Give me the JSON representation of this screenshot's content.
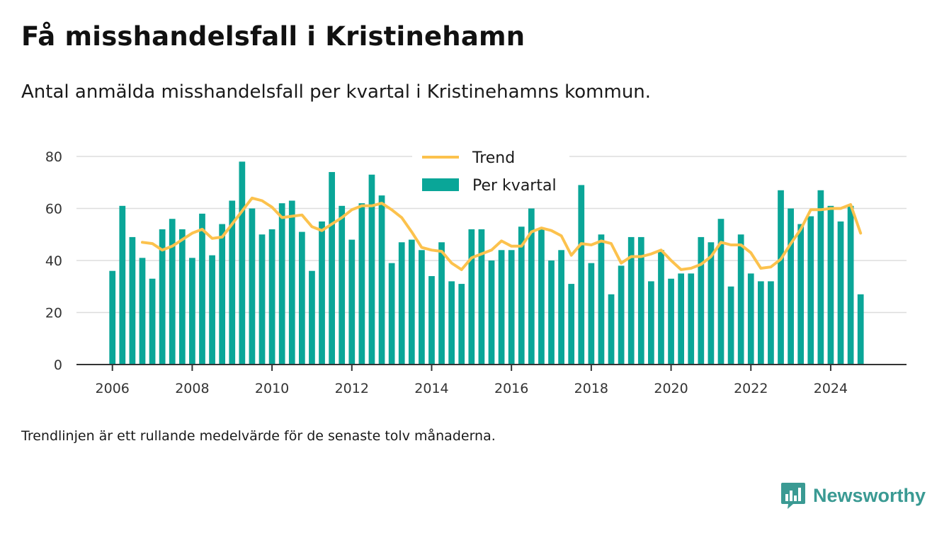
{
  "header": {
    "title": "Få misshandelsfall i Kristinehamn",
    "subtitle": "Antal anmälda misshandelsfall per kvartal i Kristinehamns kommun."
  },
  "footer": {
    "note": "Trendlinjen är ett rullande medelvärde för de senaste tolv månaderna.",
    "brand": "Newsworthy"
  },
  "colors": {
    "bar": "#0aa698",
    "trend": "#fcc24d",
    "grid": "#dddddd",
    "axis": "#333333",
    "brand": "#3a9a93"
  },
  "chart_data": {
    "type": "bar",
    "title": "Få misshandelsfall i Kristinehamn",
    "subtitle": "Antal anmälda misshandelsfall per kvartal i Kristinehamns kommun.",
    "xlabel": "",
    "ylabel": "",
    "ylim": [
      0,
      80
    ],
    "xlim": [
      2005.1,
      2025.9
    ],
    "yticks": [
      0,
      20,
      40,
      60,
      80
    ],
    "xticks": [
      "2006",
      "2008",
      "2010",
      "2012",
      "2014",
      "2016",
      "2018",
      "2020",
      "2022",
      "2024"
    ],
    "grid": true,
    "legend_position": "top-center",
    "series": [
      {
        "name": "Per kvartal",
        "type": "bar",
        "start": "2006 Q1",
        "values": [
          36,
          61,
          49,
          41,
          33,
          52,
          56,
          52,
          41,
          58,
          42,
          54,
          63,
          78,
          60,
          50,
          52,
          62,
          63,
          51,
          36,
          55,
          74,
          61,
          48,
          62,
          73,
          65,
          39,
          47,
          48,
          44,
          34,
          47,
          32,
          31,
          52,
          52,
          40,
          44,
          44,
          53,
          60,
          52,
          40,
          44,
          31,
          69,
          39,
          50,
          27,
          38,
          49,
          49,
          32,
          44,
          33,
          35,
          35,
          49,
          47,
          56,
          30,
          50,
          35,
          32,
          32,
          67,
          60,
          54,
          57,
          67,
          61,
          55,
          61,
          27
        ]
      },
      {
        "name": "Trend",
        "type": "line",
        "start": "2006 Q4",
        "values": [
          47,
          46.5,
          44,
          45.5,
          48,
          50.5,
          52,
          48.5,
          49,
          54,
          59,
          64,
          63,
          60.5,
          56.5,
          57,
          57.5,
          53,
          51.5,
          54,
          56.5,
          59.5,
          61,
          61,
          62,
          59.5,
          56.5,
          51,
          45,
          44,
          43.5,
          39,
          36.5,
          41,
          42.5,
          44,
          47.5,
          45.5,
          45.5,
          51,
          52.5,
          51.5,
          49.5,
          42,
          46.5,
          46,
          47.5,
          46.5,
          39,
          41.5,
          41.5,
          42.5,
          44,
          40,
          36.5,
          37,
          38.5,
          41.5,
          47,
          46,
          46,
          43,
          37,
          37.5,
          40.5,
          46.5,
          52,
          59.5,
          59.5,
          60,
          60,
          61.5,
          50.5
        ]
      }
    ]
  }
}
